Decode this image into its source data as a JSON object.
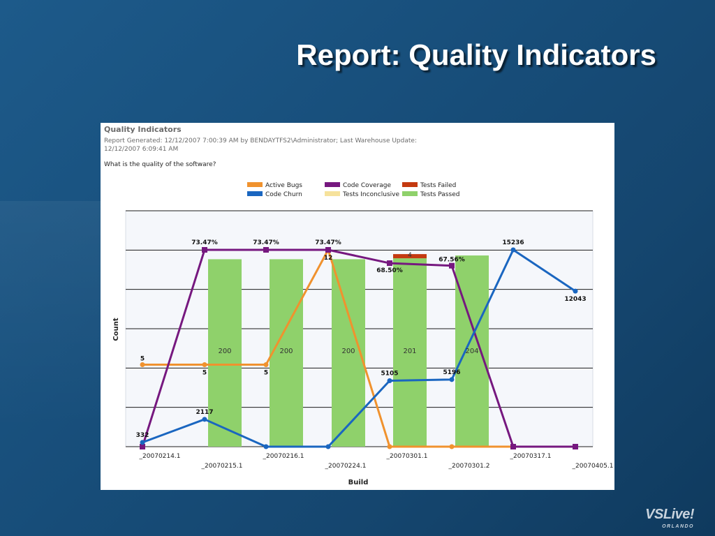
{
  "slide": {
    "title": "Report: Quality Indicators",
    "logo_text": "VSLive!",
    "logo_sub": "ORLANDO"
  },
  "report": {
    "title": "Quality Indicators",
    "meta": "Report Generated: 12/12/2007 7:00:39 AM by BENDAYTFS2\\Administrator; Last Warehouse Update: 12/12/2007 6:09:41 AM",
    "question": "What is the quality of the software?"
  },
  "colors": {
    "active_bugs": "#f0922e",
    "code_churn": "#1a66c0",
    "code_coverage": "#76187f",
    "tests_failed": "#c43a10",
    "tests_inconclusive": "#f6e29c",
    "tests_passed": "#8fd16b"
  },
  "chart_data": {
    "type": "bar",
    "xlabel": "Build",
    "ylabel": "Count",
    "grid": true,
    "legend_position": "top",
    "categories": [
      "_20070214.1",
      "_20070215.1",
      "_20070216.1",
      "_20070224.1",
      "_20070301.1",
      "_20070301.2",
      "_20070317.1",
      "_20070405.1"
    ],
    "series": [
      {
        "name": "Tests Passed",
        "kind": "bar",
        "color_key": "tests_passed",
        "values": [
          null,
          200,
          200,
          200,
          201,
          204,
          null,
          null
        ],
        "labels": [
          "",
          "200",
          "200",
          "200",
          "201",
          "204",
          "",
          ""
        ]
      },
      {
        "name": "Tests Failed",
        "kind": "bar-stack",
        "color_key": "tests_failed",
        "values": [
          null,
          null,
          null,
          null,
          4,
          null,
          null,
          null
        ],
        "labels": [
          "",
          "",
          "",
          "",
          "4",
          "",
          "",
          ""
        ]
      },
      {
        "name": "Tests Inconclusive",
        "kind": "bar-stack",
        "color_key": "tests_inconclusive",
        "values": [
          null,
          null,
          null,
          null,
          null,
          null,
          null,
          null
        ],
        "labels": [
          "",
          "",
          "",
          "",
          "",
          "",
          "",
          ""
        ]
      },
      {
        "name": "Active Bugs",
        "kind": "line",
        "color_key": "active_bugs",
        "values": [
          5,
          5,
          5,
          12,
          0,
          0,
          0,
          0
        ],
        "labels": [
          "5",
          "5",
          "5",
          "12",
          "",
          "",
          "",
          ""
        ]
      },
      {
        "name": "Code Coverage",
        "kind": "line",
        "color_key": "code_coverage",
        "values": [
          0,
          73.47,
          73.47,
          73.47,
          68.5,
          67.56,
          0,
          0
        ],
        "labels": [
          "",
          "73.47%",
          "73.47%",
          "73.47%",
          "68.50%",
          "67.56%",
          "",
          ""
        ]
      },
      {
        "name": "Code Churn",
        "kind": "line",
        "color_key": "code_churn",
        "values": [
          332,
          2117,
          0,
          0,
          5105,
          5196,
          15236,
          12043
        ],
        "labels": [
          "332",
          "2117",
          "",
          "",
          "5105",
          "5196",
          "15236",
          "12043"
        ]
      }
    ],
    "legend": [
      "Active Bugs",
      "Code Coverage",
      "Tests Failed",
      "Code Churn",
      "Tests Inconclusive",
      "Tests Passed"
    ]
  }
}
